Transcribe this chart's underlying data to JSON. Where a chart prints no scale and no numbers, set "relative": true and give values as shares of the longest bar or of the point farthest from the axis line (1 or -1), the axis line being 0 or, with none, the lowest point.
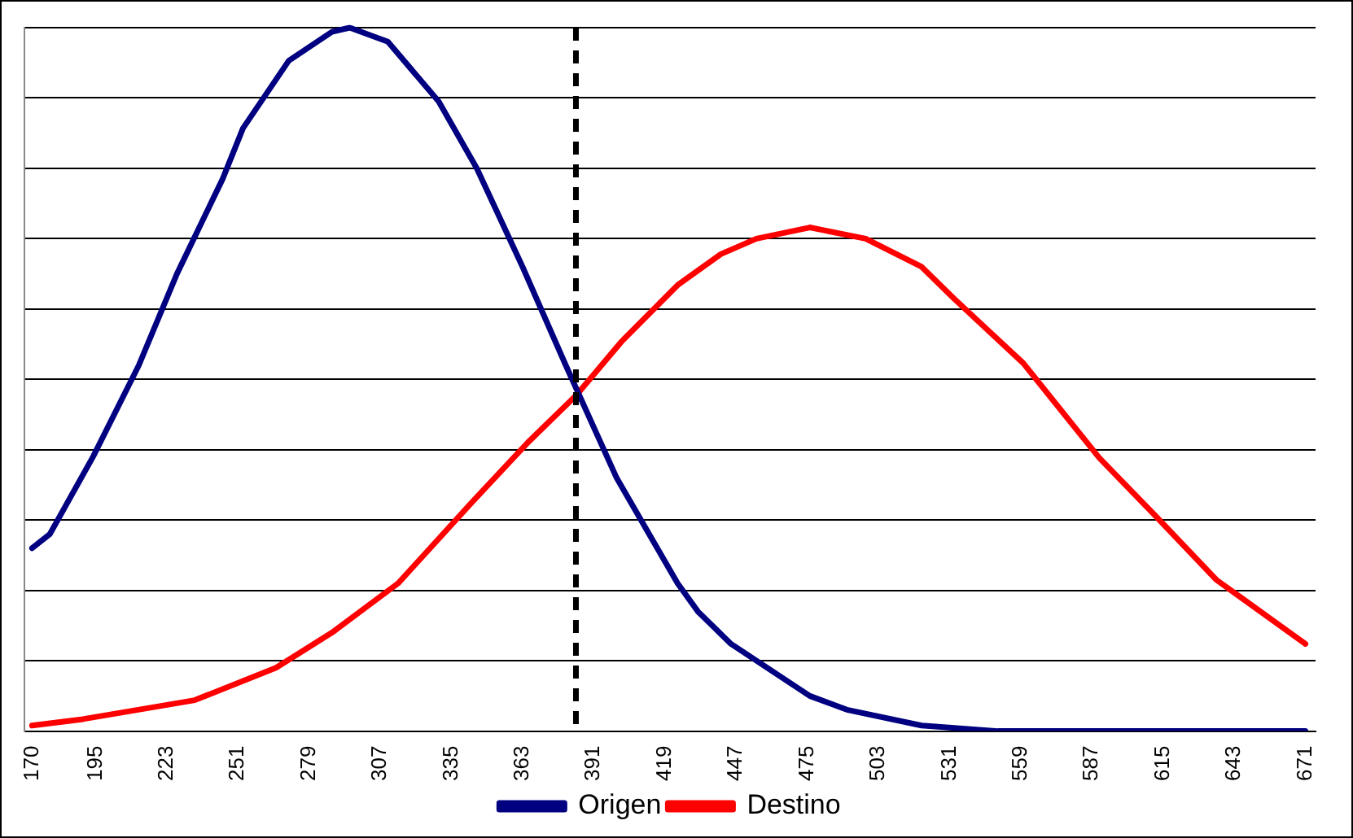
{
  "chart_data": {
    "type": "line",
    "relative": true,
    "xlim": [
      167,
      675
    ],
    "xticks": [
      170,
      195,
      223,
      251,
      279,
      307,
      335,
      363,
      391,
      419,
      447,
      475,
      503,
      531,
      559,
      587,
      615,
      643,
      671
    ],
    "grid": "y",
    "legend": "bottom",
    "marker": "none",
    "line_style": "solid",
    "series": [
      {
        "name": "Origen",
        "color": "#000080",
        "x": [
          170,
          177,
          194,
          212,
          227,
          245,
          253,
          271,
          288,
          295,
          310,
          330,
          345,
          363,
          380,
          400,
          424,
          432,
          445,
          476,
          491,
          520,
          550,
          671
        ],
        "values": [
          0.26,
          0.28,
          0.39,
          0.52,
          0.65,
          0.785,
          0.857,
          0.953,
          0.994,
          1.0,
          0.98,
          0.895,
          0.8,
          0.66,
          0.52,
          0.36,
          0.21,
          0.17,
          0.124,
          0.05,
          0.03,
          0.008,
          0,
          0
        ]
      },
      {
        "name": "Destino",
        "color": "#ff0000",
        "x": [
          170,
          190,
          234,
          266,
          288,
          314,
          343,
          365,
          384,
          402,
          424,
          441,
          455,
          476,
          498,
          520,
          533,
          560,
          590,
          612,
          636,
          671
        ],
        "values": [
          0.008,
          0.017,
          0.044,
          0.09,
          0.14,
          0.21,
          0.325,
          0.41,
          0.477,
          0.554,
          0.634,
          0.678,
          0.7,
          0.716,
          0.7,
          0.66,
          0.614,
          0.523,
          0.388,
          0.306,
          0.215,
          0.124
        ]
      }
    ],
    "ref_lines": [
      {
        "axis": "x",
        "value": 384,
        "color": "#000000",
        "line_style": "dashed"
      }
    ]
  }
}
